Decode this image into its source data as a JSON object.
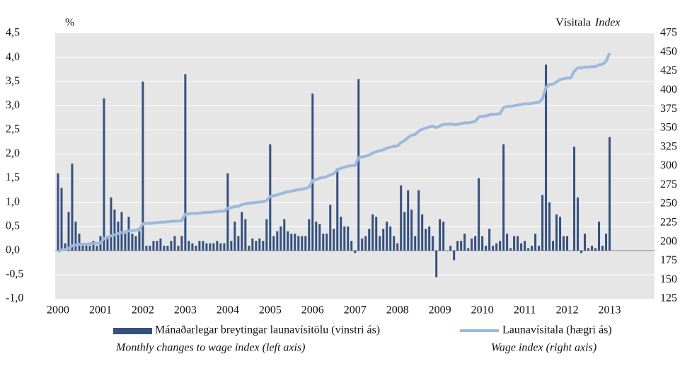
{
  "chart_data": {
    "type": "bar_line",
    "y_label": "%",
    "y2_label": "Vísitala",
    "y2_label_en": "Index",
    "categories": [
      "2000",
      null,
      null,
      null,
      null,
      null,
      null,
      null,
      null,
      null,
      null,
      null,
      "2001",
      null,
      null,
      null,
      null,
      null,
      null,
      null,
      null,
      null,
      null,
      null,
      "2002",
      null,
      null,
      null,
      null,
      null,
      null,
      null,
      null,
      null,
      null,
      null,
      "2003",
      null,
      null,
      null,
      null,
      null,
      null,
      null,
      null,
      null,
      null,
      null,
      "2004",
      null,
      null,
      null,
      null,
      null,
      null,
      null,
      null,
      null,
      null,
      null,
      "2005",
      null,
      null,
      null,
      null,
      null,
      null,
      null,
      null,
      null,
      null,
      null,
      "2006",
      null,
      null,
      null,
      null,
      null,
      null,
      null,
      null,
      null,
      null,
      null,
      "2007",
      null,
      null,
      null,
      null,
      null,
      null,
      null,
      null,
      null,
      null,
      null,
      "2008",
      null,
      null,
      null,
      null,
      null,
      null,
      null,
      null,
      null,
      null,
      null,
      "2009",
      null,
      null,
      null,
      null,
      null,
      null,
      null,
      null,
      null,
      null,
      null,
      "2010",
      null,
      null,
      null,
      null,
      null,
      null,
      null,
      null,
      null,
      null,
      null,
      "2011",
      null,
      null,
      null,
      null,
      null,
      null,
      null,
      null,
      null,
      null,
      null,
      "2012",
      null,
      null,
      null,
      null,
      null,
      null,
      null,
      null,
      null,
      null,
      null,
      "2013"
    ],
    "series": [
      {
        "name": "Mánaðarlegar breytingar launavísitölu (vinstri ás)",
        "name_en": "Monthly changes to wage index (left axis)",
        "color": "#34507f",
        "kind": "bar",
        "axis": "y",
        "values": [
          1.6,
          1.3,
          0.15,
          0.8,
          1.8,
          0.6,
          0.35,
          0.1,
          0.1,
          0.1,
          0.2,
          0.1,
          0.3,
          3.15,
          0.3,
          1.1,
          0.85,
          0.6,
          0.8,
          0.35,
          0.7,
          0.35,
          0.3,
          0.4,
          3.5,
          0.1,
          0.1,
          0.2,
          0.2,
          0.25,
          0.1,
          0.1,
          0.2,
          0.3,
          0.1,
          0.3,
          3.65,
          0.2,
          0.15,
          0.1,
          0.2,
          0.2,
          0.15,
          0.15,
          0.15,
          0.2,
          0.15,
          0.15,
          1.6,
          0.2,
          0.6,
          0.3,
          0.8,
          0.65,
          0.1,
          0.25,
          0.2,
          0.25,
          0.2,
          0.65,
          2.2,
          0.3,
          0.4,
          0.5,
          0.65,
          0.4,
          0.35,
          0.35,
          0.3,
          0.3,
          0.3,
          0.65,
          3.25,
          0.6,
          0.55,
          0.35,
          0.35,
          0.95,
          0.45,
          1.7,
          0.7,
          0.5,
          0.5,
          0.2,
          -0.05,
          3.55,
          0.25,
          0.3,
          0.45,
          0.75,
          0.7,
          0.3,
          0.45,
          0.6,
          0.5,
          0.3,
          0.15,
          1.35,
          0.8,
          1.25,
          0.85,
          0.3,
          1.25,
          0.75,
          0.45,
          0.5,
          0.3,
          -0.55,
          0.65,
          0.6,
          0.0,
          0.1,
          -0.2,
          0.2,
          0.2,
          0.35,
          0.05,
          0.25,
          0.3,
          1.5,
          0.3,
          0.1,
          0.45,
          0.1,
          0.15,
          0.2,
          2.2,
          0.35,
          0.05,
          0.3,
          0.3,
          0.15,
          0.2,
          0.05,
          0.1,
          0.35,
          0.1,
          1.15,
          3.85,
          1.0,
          0.2,
          0.75,
          0.7,
          0.3,
          0.3,
          0.0,
          2.15,
          1.1,
          -0.05,
          0.35,
          0.05,
          0.1,
          0.05,
          0.6,
          0.1,
          0.35,
          2.35
        ]
      },
      {
        "name": "Launavísitala (hægri ás)",
        "name_en": "Wage index (right axis)",
        "color": "#9db8dd",
        "kind": "line",
        "axis": "y2",
        "values": [
          187,
          189.5,
          190,
          191.5,
          195,
          196,
          197,
          197,
          197,
          197.5,
          198,
          198,
          198.5,
          205,
          205.5,
          208,
          209.5,
          211,
          212.5,
          213,
          214.5,
          215,
          215.5,
          216.5,
          224,
          224.5,
          224.5,
          225,
          225.5,
          226,
          226,
          226.5,
          227,
          227.5,
          227.5,
          228,
          236.5,
          237,
          237.5,
          237.5,
          238,
          238.5,
          239,
          239,
          239.5,
          240,
          240.5,
          240.5,
          244.5,
          245,
          246.5,
          247,
          249,
          250.5,
          251,
          251.5,
          252,
          252.5,
          253,
          254.5,
          260,
          261,
          262,
          263.5,
          265,
          266,
          267,
          268,
          269,
          269.5,
          270.5,
          272,
          281,
          282.5,
          284,
          285,
          286,
          288.5,
          290,
          295,
          297,
          298.5,
          300,
          300.5,
          300.5,
          311,
          312,
          313,
          314.5,
          317,
          319,
          320,
          321.5,
          323.5,
          325,
          326,
          326.5,
          331,
          333.5,
          337.5,
          340.5,
          341.5,
          346,
          348.5,
          350,
          351.5,
          352.5,
          350.5,
          353,
          355,
          355,
          355.5,
          354.5,
          355,
          356,
          357,
          357,
          358,
          359,
          364.5,
          365.5,
          366,
          367.5,
          368,
          368.5,
          369,
          377,
          378.5,
          378.5,
          379.5,
          380.5,
          381,
          382,
          382,
          382.5,
          383.5,
          384,
          388.5,
          403.5,
          407.5,
          408,
          411,
          414,
          415,
          416,
          416,
          425,
          429.5,
          429.5,
          430.5,
          430.5,
          431,
          431,
          433.5,
          434,
          438,
          449
        ]
      }
    ],
    "ylim": [
      -1,
      4.5
    ],
    "yticks": [
      {
        "value": -1,
        "label": "-1,0"
      },
      {
        "value": -0.5,
        "label": "-0,5"
      },
      {
        "value": 0,
        "label": "0,0"
      },
      {
        "value": 0.5,
        "label": "0,5"
      },
      {
        "value": 1,
        "label": "1,0"
      },
      {
        "value": 1.5,
        "label": "1,5"
      },
      {
        "value": 2,
        "label": "2,0"
      },
      {
        "value": 2.5,
        "label": "2,5"
      },
      {
        "value": 3,
        "label": "3,0"
      },
      {
        "value": 3.5,
        "label": "3,5"
      },
      {
        "value": 4,
        "label": "4,0"
      },
      {
        "value": 4.5,
        "label": "4,5"
      }
    ],
    "y2lim": [
      125,
      475
    ],
    "y2ticks": [
      125,
      150,
      175,
      200,
      225,
      250,
      275,
      300,
      325,
      350,
      375,
      400,
      425,
      450,
      475
    ],
    "grid": true
  }
}
